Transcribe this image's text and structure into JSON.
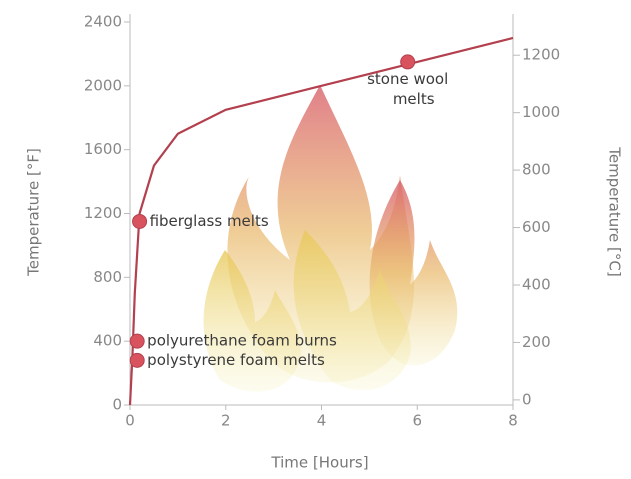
{
  "chart_data": {
    "type": "line",
    "x_label": "Time [Hours]",
    "y_label": "Temperature [°F]",
    "y2_label": "Temperature [°C]",
    "x": [
      0,
      0.05,
      0.1,
      0.2,
      0.5,
      1,
      2,
      4,
      6,
      8
    ],
    "values": [
      0,
      300,
      700,
      1200,
      1500,
      1700,
      1850,
      2000,
      2150,
      2300
    ],
    "color": "#b3404e",
    "point_color": "#d9535e",
    "xlim": [
      0,
      8
    ],
    "xticks": [
      0,
      2,
      4,
      6,
      8
    ],
    "ylim": [
      0,
      2400
    ],
    "yticks": [
      0,
      400,
      800,
      1200,
      1600,
      2000,
      2400
    ],
    "y2lim": [
      -17.8,
      1315.6
    ],
    "y2ticks": [
      0,
      200,
      400,
      600,
      800,
      1000,
      1200
    ],
    "annotations": [
      {
        "label": "polystyrene foam melts",
        "x": 0.15,
        "y": 280
      },
      {
        "label": "polyurethane foam burns",
        "x": 0.15,
        "y": 400
      },
      {
        "label": "fiberglass melts",
        "x": 0.2,
        "y": 1150
      },
      {
        "label": "stone wool\nmelts",
        "x": 5.8,
        "y": 2150
      }
    ]
  }
}
